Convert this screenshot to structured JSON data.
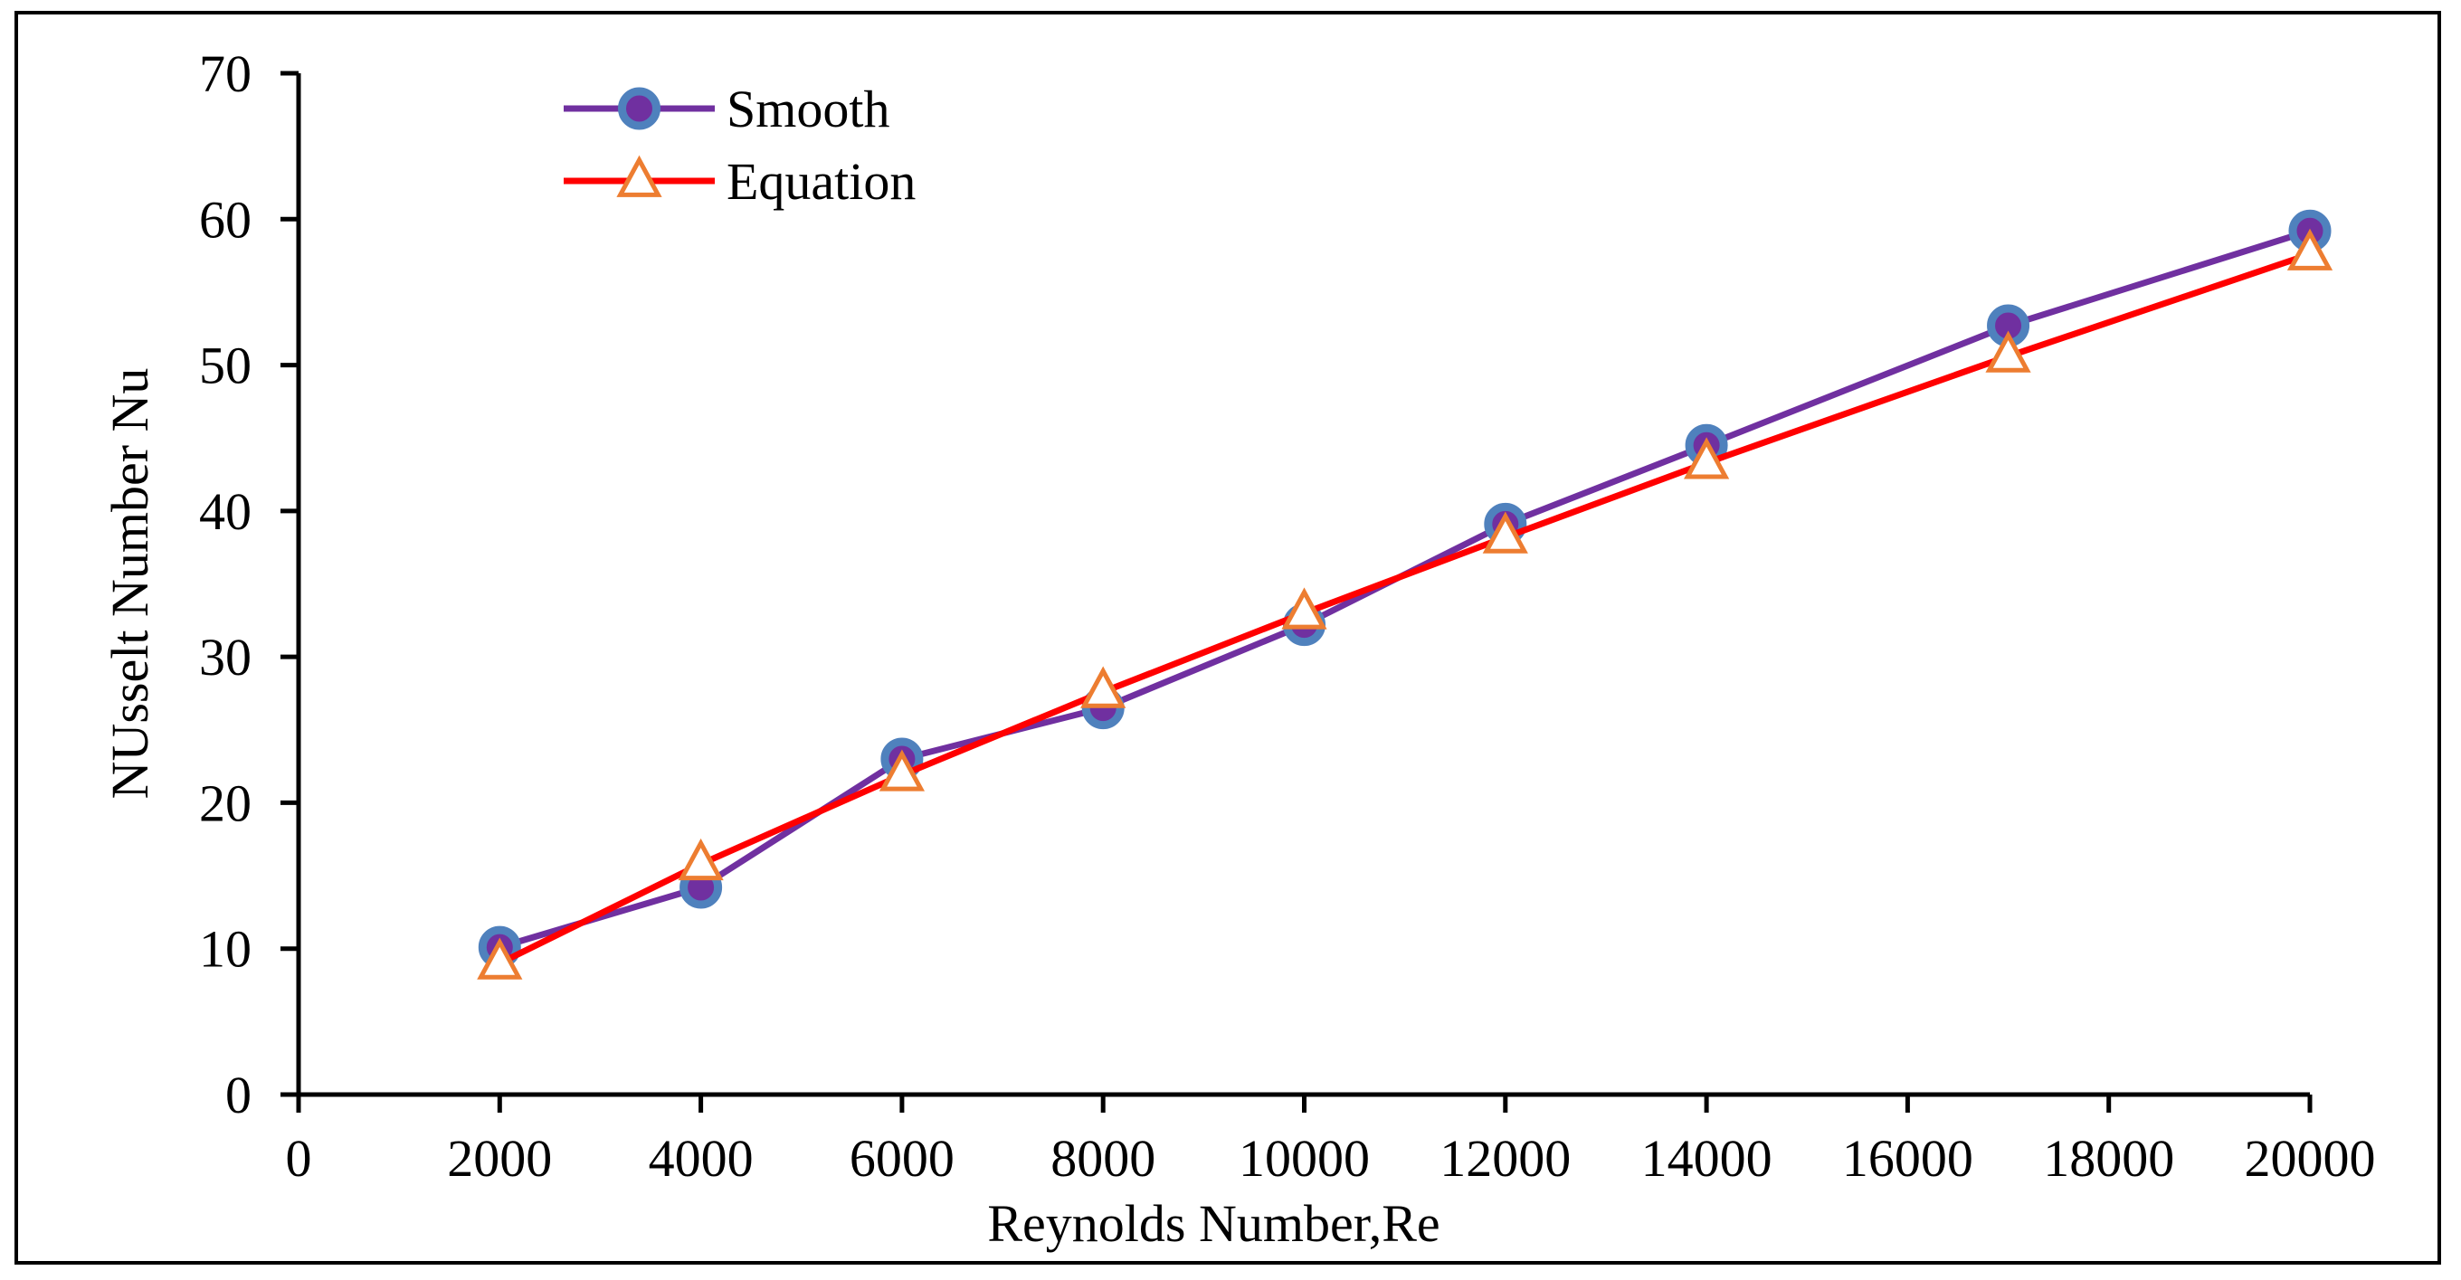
{
  "chart_data": {
    "type": "line",
    "title": "",
    "xlabel": "Reynolds Number,Re",
    "ylabel": "NUsselt Number Nu",
    "xlim": [
      0,
      20000
    ],
    "ylim": [
      0,
      70
    ],
    "xticks": [
      "0",
      "2000",
      "4000",
      "6000",
      "8000",
      "10000",
      "12000",
      "14000",
      "16000",
      "18000",
      "20000"
    ],
    "yticks": [
      "0",
      "10",
      "20",
      "30",
      "40",
      "50",
      "60",
      "70"
    ],
    "grid": false,
    "legend_position": "top-left",
    "series": [
      {
        "name": "Smooth",
        "color": "#7030A0",
        "marker": "circle",
        "marker_fill": "#7030A0",
        "marker_edge": "#4F81BD",
        "x": [
          2000,
          4000,
          6000,
          8000,
          10000,
          12000,
          14000,
          17000,
          20000
        ],
        "y": [
          10.1,
          14.2,
          23.0,
          26.5,
          32.2,
          39.1,
          44.5,
          52.7,
          59.2
        ]
      },
      {
        "name": "Equation",
        "color": "#FF0000",
        "marker": "triangle",
        "marker_fill": "#FFFFFF",
        "marker_edge": "#ED7D31",
        "x": [
          2000,
          4000,
          6000,
          8000,
          10000,
          12000,
          14000,
          17000,
          20000
        ],
        "y": [
          9.0,
          15.8,
          21.9,
          27.6,
          33.0,
          38.2,
          43.3,
          50.6,
          57.6
        ]
      }
    ]
  }
}
